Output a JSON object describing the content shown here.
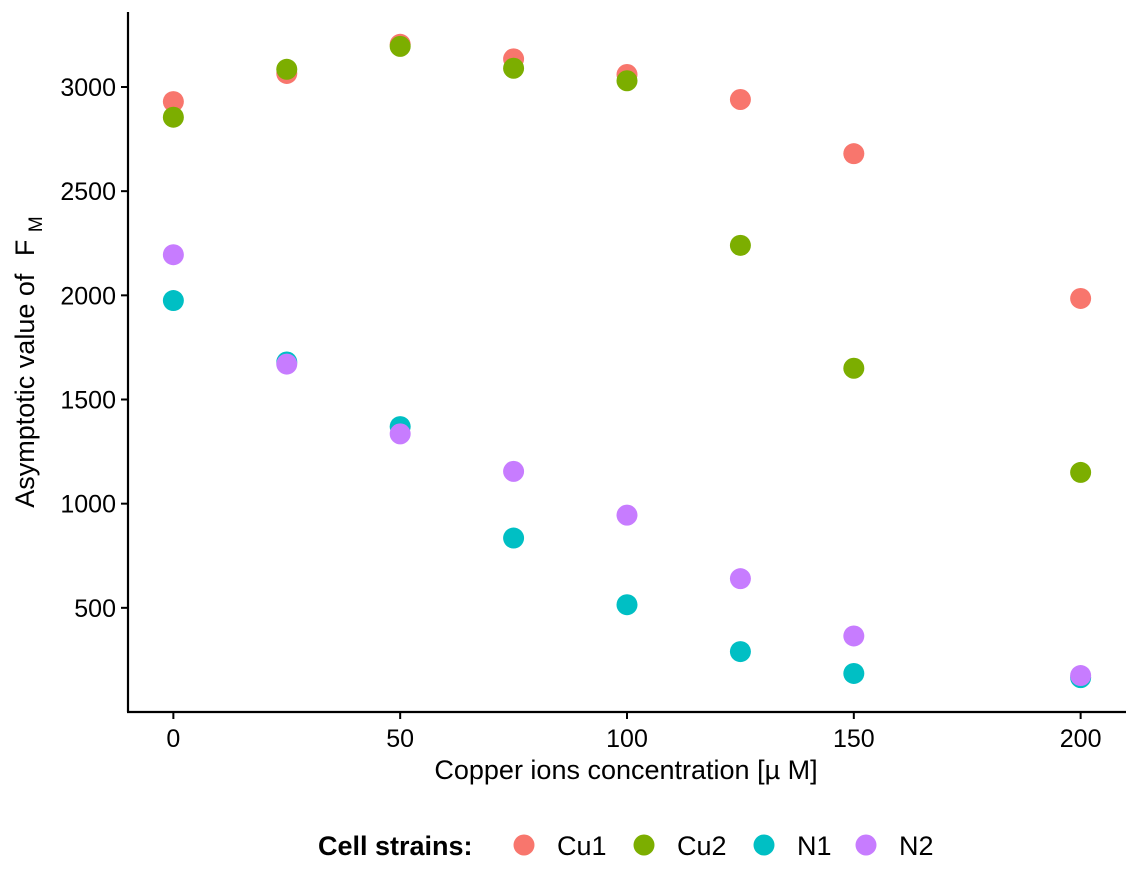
{
  "chart_data": {
    "type": "scatter",
    "xlabel": "Copper ions concentration [µ M]",
    "ylabel_main": "Asymptotic value of",
    "ylabel_symbol": "F",
    "ylabel_subscript": "M",
    "xlim": [
      -10,
      210
    ],
    "ylim": [
      0,
      3360
    ],
    "x_ticks": [
      0,
      50,
      100,
      150,
      200
    ],
    "y_ticks": [
      500,
      1000,
      1500,
      2000,
      2500,
      3000
    ],
    "grid": false,
    "legend": {
      "title": "Cell strains:",
      "position": "bottom"
    },
    "series": [
      {
        "name": "Cu1",
        "color": "#F8766D",
        "x": [
          0,
          25,
          50,
          75,
          100,
          125,
          150,
          200
        ],
        "y": [
          2930,
          3065,
          3205,
          3135,
          3060,
          2940,
          2680,
          1985
        ]
      },
      {
        "name": "Cu2",
        "color": "#7CAE00",
        "x": [
          0,
          25,
          50,
          75,
          100,
          125,
          150,
          200
        ],
        "y": [
          2855,
          3085,
          3195,
          3090,
          3030,
          2240,
          1650,
          1150
        ]
      },
      {
        "name": "N1",
        "color": "#00BFC4",
        "x": [
          0,
          25,
          50,
          75,
          100,
          125,
          150,
          200
        ],
        "y": [
          1975,
          1680,
          1370,
          835,
          515,
          290,
          185,
          165
        ]
      },
      {
        "name": "N2",
        "color": "#C77CFF",
        "x": [
          0,
          25,
          50,
          75,
          100,
          125,
          150,
          200
        ],
        "y": [
          2195,
          1670,
          1335,
          1155,
          945,
          640,
          365,
          175
        ]
      }
    ]
  }
}
